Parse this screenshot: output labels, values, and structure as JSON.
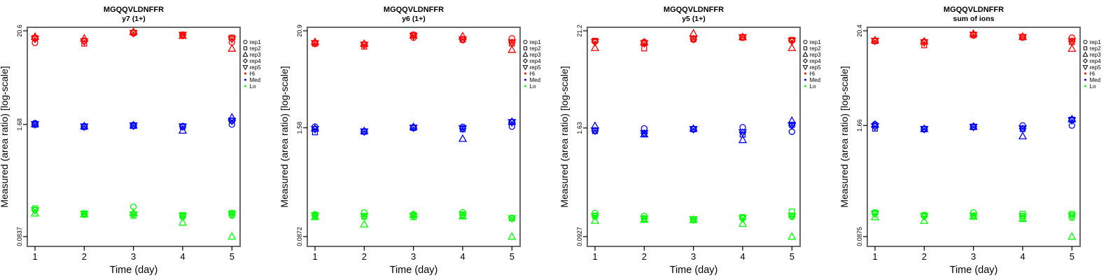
{
  "figure": {
    "ylabel": "Measured (area ratio) [log-scale]",
    "xlabel": "Time (day)"
  },
  "legend": {
    "reps": [
      {
        "label": "rep1",
        "symbol": "circle"
      },
      {
        "label": "rep2",
        "symbol": "square"
      },
      {
        "label": "rep3",
        "symbol": "triangle-up"
      },
      {
        "label": "rep4",
        "symbol": "diamond"
      },
      {
        "label": "rep5",
        "symbol": "triangle-down"
      }
    ],
    "groups": [
      {
        "label": "Hi",
        "color": "#FF0000"
      },
      {
        "label": "Med",
        "color": "#0000FF"
      },
      {
        "label": "Lo",
        "color": "#00FF00"
      }
    ]
  },
  "chart_data": [
    {
      "type": "scatter",
      "id": "y7-1plus",
      "title": "MGQQVLDNFFR",
      "subtitle": "y7 (1+)",
      "xlabel": "Time (day)",
      "ylabel": "Measured (area ratio) [log-scale]",
      "x": [
        1,
        2,
        3,
        4,
        5
      ],
      "xtick_labels": [
        "1",
        "2",
        "3",
        "4",
        "5"
      ],
      "yticks": [
        20.6,
        1.68,
        0.0837
      ],
      "ytick_labels": [
        "20.6",
        "1.68",
        "0.0837"
      ],
      "log_scale": true,
      "legend_position": "right",
      "grid": false,
      "series": [
        {
          "name": "Hi",
          "color": "#FF0000",
          "reps": {
            "rep1": [
              14.9,
              15.8,
              19.3,
              18.3,
              15.2
            ],
            "rep2": [
              17.0,
              14.6,
              19.5,
              18.6,
              17.2
            ],
            "rep3": [
              17.6,
              16.8,
              20.0,
              18.0,
              12.8
            ],
            "rep4": [
              16.8,
              15.6,
              19.5,
              18.4,
              16.6
            ],
            "rep5": [
              16.6,
              15.5,
              19.4,
              18.4,
              16.5
            ]
          }
        },
        {
          "name": "Med",
          "color": "#0000FF",
          "reps": {
            "rep1": [
              1.74,
              1.6,
              1.66,
              1.61,
              1.68
            ],
            "rep2": [
              1.67,
              1.57,
              1.61,
              1.58,
              1.86
            ],
            "rep3": [
              1.7,
              1.61,
              1.64,
              1.43,
              2.03
            ],
            "rep4": [
              1.69,
              1.59,
              1.63,
              1.59,
              1.85
            ],
            "rep5": [
              1.69,
              1.59,
              1.63,
              1.59,
              1.85
            ]
          }
        },
        {
          "name": "Lo",
          "color": "#00FF00",
          "reps": {
            "rep1": [
              0.17,
              0.151,
              0.186,
              0.142,
              0.147
            ],
            "rep2": [
              0.178,
              0.156,
              0.146,
              0.149,
              0.158
            ],
            "rep3": [
              0.156,
              0.152,
              0.157,
              0.122,
              0.084
            ],
            "rep4": [
              0.17,
              0.154,
              0.152,
              0.146,
              0.152
            ],
            "rep5": [
              0.169,
              0.154,
              0.151,
              0.146,
              0.152
            ]
          }
        }
      ]
    },
    {
      "type": "scatter",
      "id": "y6-1plus",
      "title": "MGQQVLDNFFR",
      "subtitle": "y6 (1+)",
      "xlabel": "Time (day)",
      "ylabel": "Measured (area ratio) [log-scale]",
      "x": [
        1,
        2,
        3,
        4,
        5
      ],
      "xtick_labels": [
        "1",
        "2",
        "3",
        "4",
        "5"
      ],
      "yticks": [
        20.9,
        1.58,
        0.0872
      ],
      "ytick_labels": [
        "20.9",
        "1.58",
        "0.0872"
      ],
      "log_scale": true,
      "legend_position": "right",
      "grid": false,
      "series": [
        {
          "name": "Hi",
          "color": "#FF0000",
          "reps": {
            "rep1": [
              15.1,
              14.5,
              17.4,
              16.4,
              17.1
            ],
            "rep2": [
              14.8,
              13.7,
              18.8,
              16.5,
              14.9
            ],
            "rep3": [
              15.5,
              14.8,
              18.5,
              18.1,
              12.6
            ],
            "rep4": [
              15.0,
              14.4,
              18.3,
              16.6,
              15.3
            ],
            "rep5": [
              15.0,
              14.4,
              18.2,
              16.6,
              15.3
            ]
          }
        },
        {
          "name": "Med",
          "color": "#0000FF",
          "reps": {
            "rep1": [
              1.63,
              1.44,
              1.6,
              1.62,
              1.63
            ],
            "rep2": [
              1.4,
              1.42,
              1.57,
              1.52,
              1.84
            ],
            "rep3": [
              1.55,
              1.45,
              1.62,
              1.18,
              1.86
            ],
            "rep4": [
              1.52,
              1.43,
              1.58,
              1.55,
              1.83
            ],
            "rep5": [
              1.52,
              1.43,
              1.58,
              1.55,
              1.83
            ]
          }
        },
        {
          "name": "Lo",
          "color": "#00FF00",
          "reps": {
            "rep1": [
              0.158,
              0.166,
              0.158,
              0.166,
              0.143
            ],
            "rep2": [
              0.15,
              0.148,
              0.146,
              0.153,
              0.141
            ],
            "rep3": [
              0.147,
              0.121,
              0.156,
              0.15,
              0.0872
            ],
            "rep4": [
              0.153,
              0.15,
              0.151,
              0.156,
              0.142
            ],
            "rep5": [
              0.153,
              0.15,
              0.151,
              0.156,
              0.142
            ]
          }
        }
      ]
    },
    {
      "type": "scatter",
      "id": "y5-1plus",
      "title": "MGQQVLDNFFR",
      "subtitle": "y5 (1+)",
      "xlabel": "Time (day)",
      "ylabel": "Measured (area ratio) [log-scale]",
      "x": [
        1,
        2,
        3,
        4,
        5
      ],
      "xtick_labels": [
        "1",
        "2",
        "3",
        "4",
        "5"
      ],
      "yticks": [
        21.2,
        1.63,
        0.0927
      ],
      "ytick_labels": [
        "21.2",
        "1.63",
        "0.0927"
      ],
      "log_scale": true,
      "legend_position": "right",
      "grid": false,
      "series": [
        {
          "name": "Hi",
          "color": "#FF0000",
          "reps": {
            "rep1": [
              16.0,
              15.8,
              16.8,
              17.9,
              16.4
            ],
            "rep2": [
              16.3,
              13.3,
              17.0,
              17.7,
              16.7
            ],
            "rep3": [
              13.5,
              15.6,
              19.8,
              18.0,
              13.5
            ],
            "rep4": [
              15.8,
              15.2,
              17.2,
              17.9,
              16.2
            ],
            "rep5": [
              15.8,
              15.2,
              17.2,
              17.9,
              16.2
            ]
          }
        },
        {
          "name": "Med",
          "color": "#0000FF",
          "reps": {
            "rep1": [
              1.51,
              1.61,
              1.57,
              1.66,
              1.48
            ],
            "rep2": [
              1.5,
              1.39,
              1.58,
              1.37,
              1.77
            ],
            "rep3": [
              1.72,
              1.38,
              1.6,
              1.19,
              1.97
            ],
            "rep4": [
              1.52,
              1.42,
              1.58,
              1.45,
              1.75
            ],
            "rep5": [
              1.52,
              1.42,
              1.58,
              1.45,
              1.75
            ]
          }
        },
        {
          "name": "Lo",
          "color": "#00FF00",
          "reps": {
            "rep1": [
              0.173,
              0.16,
              0.146,
              0.151,
              0.157
            ],
            "rep2": [
              0.16,
              0.147,
              0.147,
              0.155,
              0.18
            ],
            "rep3": [
              0.141,
              0.145,
              0.144,
              0.13,
              0.0927
            ],
            "rep4": [
              0.16,
              0.149,
              0.146,
              0.15,
              0.16
            ],
            "rep5": [
              0.159,
              0.149,
              0.146,
              0.15,
              0.16
            ]
          }
        }
      ]
    },
    {
      "type": "scatter",
      "id": "sum-of-ions",
      "title": "MGQQVLDNFFR",
      "subtitle": "sum of ions",
      "xlabel": "Time (day)",
      "ylabel": "Measured (area ratio) [log-scale]",
      "x": [
        1,
        2,
        3,
        4,
        5
      ],
      "xtick_labels": [
        "1",
        "2",
        "3",
        "4",
        "5"
      ],
      "yticks": [
        20.4,
        1.66,
        0.0875
      ],
      "ytick_labels": [
        "20.4",
        "1.66",
        "0.0875"
      ],
      "log_scale": true,
      "legend_position": "right",
      "grid": false,
      "series": [
        {
          "name": "Hi",
          "color": "#FF0000",
          "reps": {
            "rep1": [
              15.7,
              15.3,
              18.3,
              17.3,
              17.0
            ],
            "rep2": [
              15.5,
              13.9,
              18.1,
              17.1,
              15.1
            ],
            "rep3": [
              15.9,
              15.4,
              18.9,
              17.5,
              12.7
            ],
            "rep4": [
              15.6,
              15.0,
              18.3,
              17.3,
              15.5
            ],
            "rep5": [
              15.6,
              15.0,
              18.3,
              17.3,
              15.5
            ]
          }
        },
        {
          "name": "Med",
          "color": "#0000FF",
          "reps": {
            "rep1": [
              1.71,
              1.52,
              1.62,
              1.66,
              1.66
            ],
            "rep2": [
              1.53,
              1.5,
              1.59,
              1.51,
              1.94
            ],
            "rep3": [
              1.7,
              1.52,
              1.61,
              1.25,
              1.96
            ],
            "rep4": [
              1.62,
              1.51,
              1.6,
              1.53,
              1.9
            ],
            "rep5": [
              1.62,
              1.51,
              1.6,
              1.53,
              1.9
            ]
          }
        },
        {
          "name": "Lo",
          "color": "#00FF00",
          "reps": {
            "rep1": [
              0.166,
              0.155,
              0.166,
              0.143,
              0.144
            ],
            "rep2": [
              0.165,
              0.154,
              0.15,
              0.16,
              0.16
            ],
            "rep3": [
              0.147,
              0.133,
              0.149,
              0.14,
              0.0875
            ],
            "rep4": [
              0.16,
              0.15,
              0.152,
              0.15,
              0.152
            ],
            "rep5": [
              0.16,
              0.15,
              0.152,
              0.15,
              0.152
            ]
          }
        }
      ]
    }
  ]
}
